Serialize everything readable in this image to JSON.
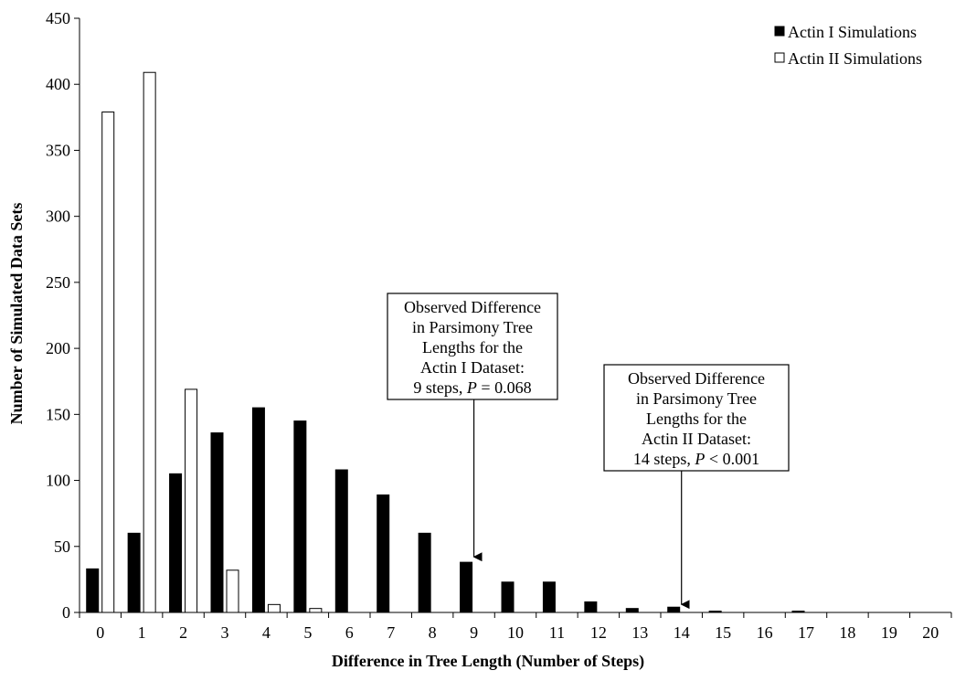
{
  "chart_data": {
    "type": "bar",
    "categories": [
      "0",
      "1",
      "2",
      "3",
      "4",
      "5",
      "6",
      "7",
      "8",
      "9",
      "10",
      "11",
      "12",
      "13",
      "14",
      "15",
      "16",
      "17",
      "18",
      "19",
      "20"
    ],
    "series": [
      {
        "name": "Actin I Simulations",
        "color": "#000000",
        "values": [
          33,
          60,
          105,
          136,
          155,
          145,
          108,
          89,
          60,
          38,
          23,
          23,
          8,
          3,
          4,
          1,
          0,
          1,
          0,
          0,
          0
        ]
      },
      {
        "name": "Actin II Simulations",
        "color": "#ffffff",
        "values": [
          379,
          409,
          169,
          32,
          6,
          3,
          0,
          0,
          0,
          0,
          0,
          0,
          0,
          0,
          0,
          0,
          0,
          0,
          0,
          0,
          0
        ]
      }
    ],
    "xlabel": "Difference in Tree Length (Number of Steps)",
    "ylabel": "Number of Simulated Data Sets",
    "ylim": [
      0,
      450
    ],
    "yticks": [
      0,
      50,
      100,
      150,
      200,
      250,
      300,
      350,
      400,
      450
    ],
    "grid": false,
    "legend_position": "top-right",
    "annotations": [
      {
        "lines": [
          "Observed Difference",
          "in Parsimony Tree",
          "Lengths for the",
          "Actin I Dataset:",
          "9 steps, P  = 0.068"
        ],
        "points_to_x": 9,
        "points_to_y": 40
      },
      {
        "lines": [
          "Observed Difference",
          "in Parsimony Tree",
          "Lengths for the",
          "Actin II Dataset:",
          "14 steps, P  < 0.001"
        ],
        "points_to_x": 14,
        "points_to_y": 4
      }
    ]
  }
}
